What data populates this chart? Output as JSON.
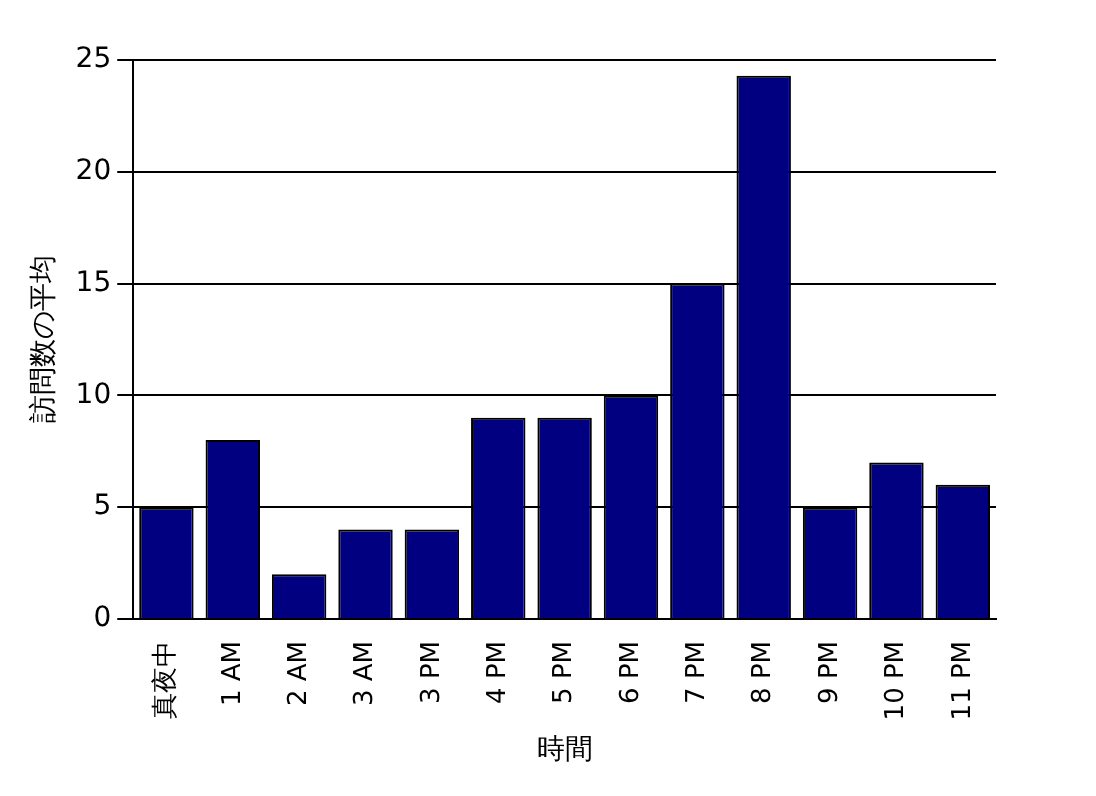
{
  "chart_data": {
    "type": "bar",
    "xlabel": "時間",
    "ylabel": "訪問数の平均",
    "categories": [
      "真夜中",
      "1 AM",
      "2 AM",
      "3 AM",
      "3 PM",
      "4 PM",
      "5 PM",
      "6 PM",
      "7 PM",
      "8 PM",
      "9 PM",
      "10 PM",
      "11 PM"
    ],
    "values": [
      5,
      8,
      2,
      4,
      4,
      9,
      9,
      10,
      15,
      24.3,
      5,
      7,
      6
    ],
    "color": "#000080",
    "ylim": [
      0,
      25
    ],
    "yticks": [
      0,
      5,
      10,
      15,
      20,
      25
    ],
    "grid": "y",
    "legend": false
  }
}
